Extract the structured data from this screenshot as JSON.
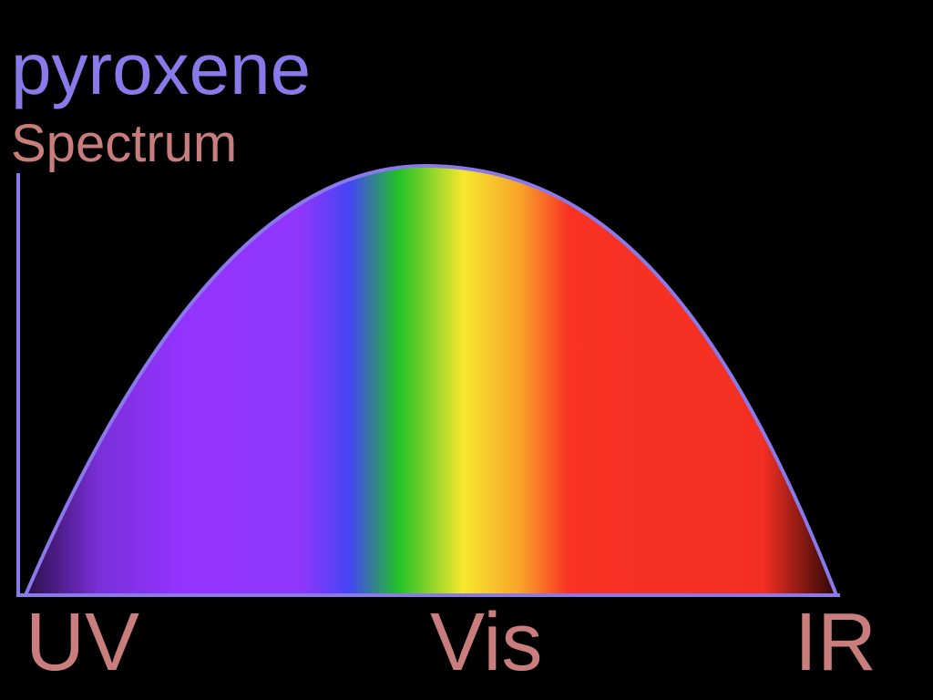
{
  "title": "pyroxene",
  "subtitle": "Spectrum",
  "axis_labels": {
    "uv": "UV",
    "vis": "Vis",
    "ir": "IR"
  },
  "colors": {
    "title": "#8a79ea",
    "labels": "#c97d7d",
    "axis": "#8a79ea",
    "spectrum": [
      "#2a0f4a",
      "#7a2fd8",
      "#9333ff",
      "#8f36fb",
      "#4346f5",
      "#22c126",
      "#f7e72d",
      "#f8a32a",
      "#f93223",
      "#f32f22",
      "#2a0606"
    ]
  }
}
